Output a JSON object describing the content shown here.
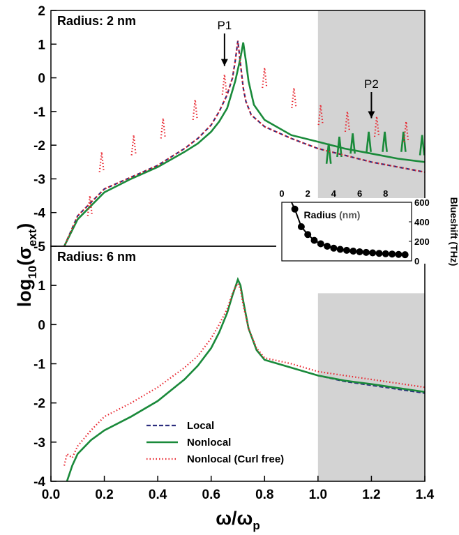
{
  "chart_data": [
    {
      "type": "line",
      "title": "Radius: 2 nm",
      "xlabel": "ω/ωp",
      "ylabel": "log10(σext)",
      "xlim": [
        0.0,
        1.4
      ],
      "ylim": [
        -5,
        2
      ],
      "yticks": [
        -5,
        -4,
        -3,
        -2,
        -1,
        0,
        1,
        2
      ],
      "shaded_region": [
        1.0,
        1.4
      ],
      "series": [
        {
          "name": "Local",
          "color": "#2b2d7e",
          "style": "dashed",
          "x": [
            0.05,
            0.1,
            0.2,
            0.3,
            0.4,
            0.5,
            0.55,
            0.6,
            0.63,
            0.66,
            0.68,
            0.69,
            0.7,
            0.71,
            0.72,
            0.73,
            0.75,
            0.8,
            0.9,
            1.0,
            1.1,
            1.2,
            1.3,
            1.4
          ],
          "y": [
            -5.0,
            -4.1,
            -3.3,
            -2.95,
            -2.6,
            -2.1,
            -1.8,
            -1.4,
            -1.0,
            -0.5,
            0.0,
            0.5,
            1.1,
            0.4,
            -0.3,
            -0.7,
            -1.1,
            -1.45,
            -1.8,
            -2.1,
            -2.3,
            -2.5,
            -2.65,
            -2.8
          ]
        },
        {
          "name": "Nonlocal",
          "color": "#1a8a3a",
          "style": "solid",
          "x": [
            0.05,
            0.1,
            0.2,
            0.3,
            0.4,
            0.5,
            0.55,
            0.6,
            0.63,
            0.66,
            0.69,
            0.71,
            0.72,
            0.73,
            0.74,
            0.76,
            0.8,
            0.9,
            1.0,
            1.1,
            1.2,
            1.3,
            1.4
          ],
          "y": [
            -5.0,
            -4.2,
            -3.4,
            -3.0,
            -2.65,
            -2.2,
            -1.95,
            -1.6,
            -1.3,
            -0.9,
            -0.1,
            0.6,
            1.05,
            0.5,
            -0.1,
            -0.8,
            -1.25,
            -1.7,
            -1.9,
            -2.1,
            -2.25,
            -2.4,
            -2.5
          ],
          "peaks": {
            "x": [
              1.04,
              1.08,
              1.13,
              1.19,
              1.25,
              1.32,
              1.39
            ],
            "y": [
              -1.95,
              -1.75,
              -1.65,
              -1.6,
              -1.6,
              -1.6,
              -1.7
            ]
          }
        },
        {
          "name": "Nonlocal (Curl free)",
          "color": "#e8252e",
          "style": "dotted",
          "x": [
            0.05,
            0.1,
            0.2,
            0.3,
            0.4,
            0.5,
            0.55,
            0.6,
            0.63,
            0.66,
            0.68,
            0.69,
            0.7,
            0.71,
            0.72,
            0.73,
            0.75,
            0.8,
            0.9,
            1.0,
            1.1,
            1.2,
            1.3,
            1.4
          ],
          "y": [
            -5.0,
            -4.1,
            -3.3,
            -2.95,
            -2.6,
            -2.1,
            -1.8,
            -1.4,
            -1.0,
            -0.5,
            0.0,
            0.5,
            1.1,
            0.4,
            -0.3,
            -0.7,
            -1.1,
            -1.45,
            -1.8,
            -2.1,
            -2.3,
            -2.5,
            -2.65,
            -2.8
          ],
          "peaks": {
            "x": [
              0.146,
              0.19,
              0.31,
              0.42,
              0.54,
              0.65,
              0.8,
              0.91,
              1.01,
              1.11,
              1.22,
              1.33
            ],
            "y": [
              -3.5,
              -2.2,
              -1.7,
              -1.2,
              -0.65,
              0.1,
              0.3,
              -0.3,
              -0.8,
              -1.0,
              -1.15,
              -1.3
            ]
          }
        }
      ],
      "annotations": [
        {
          "text": "P1",
          "x": 0.65
        },
        {
          "text": "P2",
          "x": 1.2
        }
      ]
    },
    {
      "type": "line",
      "title": "Radius: 6 nm",
      "xlabel": "ω/ωp",
      "ylabel": "log10(σext)",
      "xlim": [
        0.0,
        1.4
      ],
      "ylim": [
        -4,
        2
      ],
      "yticks": [
        -4,
        -3,
        -2,
        -1,
        0,
        1
      ],
      "xticks": [
        0.0,
        0.2,
        0.4,
        0.6,
        0.8,
        1.0,
        1.2,
        1.4
      ],
      "shaded_region": [
        1.0,
        1.4
      ],
      "legend": "bottom-left",
      "series": [
        {
          "name": "Local",
          "color": "#2b2d7e",
          "style": "dashed",
          "x": [
            0.055,
            0.08,
            0.1,
            0.15,
            0.2,
            0.3,
            0.4,
            0.5,
            0.55,
            0.6,
            0.63,
            0.66,
            0.68,
            0.69,
            0.7,
            0.71,
            0.72,
            0.74,
            0.77,
            0.8,
            0.9,
            1.0,
            1.1,
            1.2,
            1.3,
            1.4
          ],
          "y": [
            -4.1,
            -3.6,
            -3.3,
            -2.95,
            -2.7,
            -2.35,
            -1.95,
            -1.4,
            -1.05,
            -0.6,
            -0.2,
            0.3,
            0.75,
            0.95,
            1.15,
            1.0,
            0.6,
            -0.1,
            -0.65,
            -0.9,
            -1.1,
            -1.3,
            -1.45,
            -1.55,
            -1.65,
            -1.75
          ]
        },
        {
          "name": "Nonlocal",
          "color": "#1a8a3a",
          "style": "solid",
          "x": [
            0.055,
            0.08,
            0.1,
            0.15,
            0.2,
            0.3,
            0.4,
            0.5,
            0.55,
            0.6,
            0.63,
            0.66,
            0.68,
            0.69,
            0.7,
            0.71,
            0.72,
            0.74,
            0.77,
            0.8,
            0.9,
            1.0,
            1.1,
            1.2,
            1.3,
            1.4
          ],
          "y": [
            -4.1,
            -3.6,
            -3.3,
            -2.95,
            -2.7,
            -2.35,
            -1.95,
            -1.4,
            -1.05,
            -0.6,
            -0.2,
            0.3,
            0.75,
            0.95,
            1.15,
            1.0,
            0.6,
            -0.1,
            -0.65,
            -0.9,
            -1.1,
            -1.3,
            -1.43,
            -1.52,
            -1.62,
            -1.72
          ]
        },
        {
          "name": "Nonlocal (Curl free)",
          "color": "#e8252e",
          "style": "dotted",
          "x": [
            0.05,
            0.06,
            0.08,
            0.1,
            0.15,
            0.2,
            0.3,
            0.4,
            0.5,
            0.55,
            0.6,
            0.63,
            0.66,
            0.68,
            0.69,
            0.7,
            0.71,
            0.72,
            0.74,
            0.77,
            0.8,
            0.9,
            1.0,
            1.1,
            1.2,
            1.3,
            1.4
          ],
          "y": [
            -3.6,
            -3.3,
            -3.4,
            -3.1,
            -2.7,
            -2.35,
            -2.0,
            -1.6,
            -1.1,
            -0.8,
            -0.35,
            0.0,
            0.4,
            0.8,
            0.95,
            1.05,
            0.9,
            0.5,
            -0.1,
            -0.6,
            -0.85,
            -1.0,
            -1.2,
            -1.3,
            -1.4,
            -1.5,
            -1.6
          ]
        }
      ]
    },
    {
      "type": "scatter",
      "title": "",
      "xlabel": "Radius (nm)",
      "ylabel": "Blueshift (THz)",
      "xlim": [
        0,
        10
      ],
      "ylim": [
        0,
        600
      ],
      "xticks": [
        0,
        2,
        4,
        6,
        8
      ],
      "yticks": [
        0,
        200,
        400,
        600
      ],
      "x": [
        1.0,
        1.5,
        2.0,
        2.5,
        3.0,
        3.5,
        4.0,
        4.5,
        5.0,
        5.5,
        6.0,
        6.5,
        7.0,
        7.5,
        8.0,
        8.5,
        9.0,
        9.5
      ],
      "y": [
        530,
        350,
        270,
        210,
        175,
        150,
        130,
        118,
        108,
        100,
        93,
        87,
        82,
        77,
        73,
        70,
        66,
        63
      ]
    }
  ],
  "labels": {
    "ylabel_main": "log",
    "ylabel_sub": "10",
    "ylabel_paren_open": "(σ",
    "ylabel_sub2": "ext",
    "ylabel_paren_close": ")",
    "xlabel_main": "ω/ω",
    "xlabel_sub": "p",
    "inset_x_label_a": "Radius ",
    "inset_x_label_b": "(nm)",
    "inset_y_label": "Blueshift (THz)"
  }
}
